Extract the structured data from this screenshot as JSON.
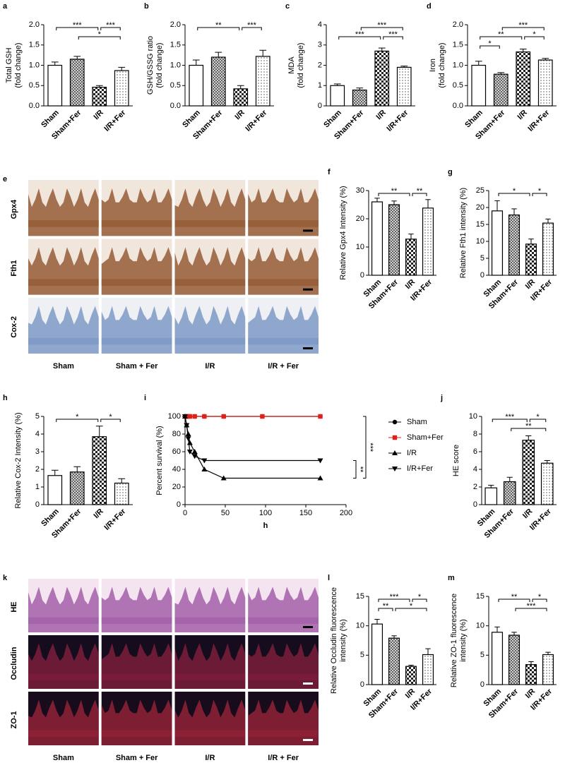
{
  "chart_data": [
    {
      "type": "bar",
      "panel": "a",
      "ylabel": [
        "Total GSH",
        "(fold change)"
      ],
      "categories": [
        "Sham",
        "Sham+Fer",
        "I/R",
        "I/R+Fer"
      ],
      "values": [
        1.0,
        1.15,
        0.46,
        0.87
      ],
      "errors": [
        0.08,
        0.07,
        0.04,
        0.08
      ],
      "ylim": [
        0,
        2
      ],
      "yticks": [
        {
          "value": 0,
          "label": "0.0"
        },
        0.5,
        {
          "value": 1,
          "label": "1.0"
        },
        1.5,
        {
          "value": 2,
          "label": "2.0"
        }
      ],
      "significance": [
        {
          "groups": [
            0,
            2
          ],
          "label": "***"
        },
        {
          "groups": [
            2,
            3
          ],
          "label": "***"
        },
        {
          "groups": [
            1,
            3
          ],
          "label": "*"
        }
      ]
    },
    {
      "type": "bar",
      "panel": "b",
      "ylabel": [
        "GSH/GSSG ratio",
        "(fold change)"
      ],
      "categories": [
        "Sham",
        "Sham+Fer",
        "I/R",
        "I/R+Fer"
      ],
      "values": [
        1.0,
        1.2,
        0.42,
        1.22
      ],
      "errors": [
        0.13,
        0.12,
        0.08,
        0.15
      ],
      "ylim": [
        0,
        2
      ],
      "yticks": [
        {
          "value": 0,
          "label": "0.0"
        },
        0.5,
        {
          "value": 1,
          "label": "1.0"
        },
        1.5,
        {
          "value": 2,
          "label": "2.0"
        }
      ],
      "significance": [
        {
          "groups": [
            0,
            2
          ],
          "label": "**"
        },
        {
          "groups": [
            2,
            3
          ],
          "label": "***"
        }
      ]
    },
    {
      "type": "bar",
      "panel": "c",
      "ylabel": [
        "MDA",
        "(fold change)"
      ],
      "categories": [
        "Sham",
        "Sham+Fer",
        "I/R",
        "I/R+Fer"
      ],
      "values": [
        1.0,
        0.78,
        2.7,
        1.9
      ],
      "errors": [
        0.08,
        0.1,
        0.15,
        0.06
      ],
      "ylim": [
        0,
        4
      ],
      "yticks": [
        0,
        1,
        2,
        3,
        4
      ],
      "significance": [
        {
          "groups": [
            1,
            3
          ],
          "label": "***"
        },
        {
          "groups": [
            0,
            2
          ],
          "label": "***"
        },
        {
          "groups": [
            2,
            3
          ],
          "label": "***"
        }
      ]
    },
    {
      "type": "bar",
      "panel": "d",
      "ylabel": [
        "Iron",
        "(fold change)"
      ],
      "categories": [
        "Sham",
        "Sham+Fer",
        "I/R",
        "I/R+Fer"
      ],
      "values": [
        1.0,
        0.78,
        1.33,
        1.13
      ],
      "errors": [
        0.1,
        0.04,
        0.07,
        0.04
      ],
      "ylim": [
        0,
        2
      ],
      "yticks": [
        {
          "value": 0,
          "label": "0.0"
        },
        0.5,
        {
          "value": 1,
          "label": "1.0"
        },
        1.5,
        {
          "value": 2,
          "label": "2.0"
        }
      ],
      "significance": [
        {
          "groups": [
            1,
            3
          ],
          "label": "***"
        },
        {
          "groups": [
            0,
            2
          ],
          "label": "**"
        },
        {
          "groups": [
            2,
            3
          ],
          "label": "*"
        },
        {
          "groups": [
            0,
            1
          ],
          "label": "*"
        }
      ]
    },
    {
      "type": "image",
      "panel": "e",
      "rows": [
        "Gpx4",
        "Fth1",
        "Cox-2"
      ],
      "columns": [
        "Sham",
        "Sham + Fer",
        "I/R",
        "I/R + Fer"
      ],
      "row_colors": [
        "#8a4a22",
        "#8a4a22",
        "#6f8fc0"
      ],
      "row_backgrounds": [
        "#f1e6dc",
        "#f1e6dc",
        "#eef0f4"
      ]
    },
    {
      "type": "bar",
      "panel": "f",
      "ylabel": [
        "Relative Gpx4 Intensity (%)"
      ],
      "categories": [
        "Sham",
        "Sham+Fer",
        "I/R",
        "I/R+Fer"
      ],
      "values": [
        26,
        25,
        12.8,
        23.8
      ],
      "errors": [
        1.3,
        1.3,
        1.8,
        3
      ],
      "ylim": [
        0,
        30
      ],
      "yticks": [
        0,
        10,
        20,
        30
      ],
      "significance": [
        {
          "groups": [
            0,
            2
          ],
          "label": "**"
        },
        {
          "groups": [
            2,
            3
          ],
          "label": "**"
        }
      ]
    },
    {
      "type": "bar",
      "panel": "g",
      "ylabel": [
        "Relative Fth1 intensity (%)"
      ],
      "categories": [
        "Sham",
        "Sham+Fer",
        "I/R",
        "I/R+Fer"
      ],
      "values": [
        19,
        17.8,
        9.2,
        15.4
      ],
      "errors": [
        3,
        1.8,
        1.5,
        1.2
      ],
      "ylim": [
        0,
        25
      ],
      "yticks": [
        0,
        5,
        10,
        15,
        20,
        25
      ],
      "significance": [
        {
          "groups": [
            0,
            2
          ],
          "label": "*"
        },
        {
          "groups": [
            2,
            3
          ],
          "label": "*"
        }
      ]
    },
    {
      "type": "bar",
      "panel": "h",
      "ylabel": [
        "Relative Cox-2 Intensity (%)"
      ],
      "categories": [
        "Sham",
        "Sham+Fer",
        "I/R",
        "I/R+Fer"
      ],
      "values": [
        1.65,
        1.85,
        3.85,
        1.22
      ],
      "errors": [
        0.3,
        0.3,
        0.6,
        0.25
      ],
      "ylim": [
        0,
        5
      ],
      "yticks": [
        0,
        1,
        2,
        3,
        4,
        5
      ],
      "significance": [
        {
          "groups": [
            0,
            2
          ],
          "label": "*"
        },
        {
          "groups": [
            2,
            3
          ],
          "label": "*"
        }
      ]
    },
    {
      "type": "line",
      "panel": "i",
      "ylabel": [
        "Percent survival (%)"
      ],
      "xlabel": "h",
      "xlim": [
        0,
        200
      ],
      "xticks": [
        0,
        50,
        100,
        150,
        200
      ],
      "ylim": [
        0,
        100
      ],
      "yticks": [
        0,
        20,
        40,
        60,
        80,
        100
      ],
      "series": [
        {
          "name": "Sham",
          "color": "#000000",
          "marker": "circle",
          "x": [
            0,
            2,
            4,
            6,
            12,
            24,
            48,
            96,
            168
          ],
          "values": [
            100,
            100,
            100,
            100,
            100,
            100,
            100,
            100,
            100
          ]
        },
        {
          "name": "Sham+Fer",
          "color": "#e0201b",
          "marker": "square",
          "x": [
            0,
            2,
            4,
            6,
            12,
            24,
            48,
            96,
            168
          ],
          "values": [
            100,
            100,
            100,
            100,
            100,
            100,
            100,
            100,
            100
          ]
        },
        {
          "name": "I/R",
          "color": "#000000",
          "marker": "triangle",
          "x": [
            0,
            2,
            4,
            6,
            12,
            24,
            48,
            168
          ],
          "values": [
            100,
            90,
            80,
            70,
            60,
            40,
            30,
            30
          ]
        },
        {
          "name": "I/R+Fer",
          "color": "#000000",
          "marker": "triangle-down",
          "x": [
            0,
            2,
            4,
            6,
            12,
            24,
            168
          ],
          "values": [
            100,
            90,
            75,
            60,
            55,
            50,
            50
          ]
        }
      ],
      "significance": [
        {
          "series": [
            0,
            2
          ],
          "label": "***"
        },
        {
          "series": [
            3,
            2
          ],
          "label": "**"
        }
      ]
    },
    {
      "type": "bar",
      "panel": "j",
      "ylabel": [
        "HE score"
      ],
      "categories": [
        "Sham",
        "Sham+Fer",
        "I/R",
        "I/R+Fer"
      ],
      "values": [
        1.9,
        2.6,
        7.3,
        4.7
      ],
      "errors": [
        0.3,
        0.5,
        0.5,
        0.3
      ],
      "ylim": [
        0,
        10
      ],
      "yticks": [
        0,
        2,
        4,
        6,
        8,
        10
      ],
      "significance": [
        {
          "groups": [
            0,
            2
          ],
          "label": "***"
        },
        {
          "groups": [
            2,
            3
          ],
          "label": "*"
        },
        {
          "groups": [
            1,
            3
          ],
          "label": "**"
        }
      ]
    },
    {
      "type": "image",
      "panel": "k",
      "rows": [
        "HE",
        "Occludin",
        "ZO-1"
      ],
      "columns": [
        "Sham",
        "Sham + Fer",
        "I/R",
        "I/R + Fer"
      ],
      "row_colors": [
        "#9a4fa0",
        "#8a2040",
        "#a0243a"
      ],
      "row_backgrounds": [
        "#f4e4f0",
        "#150c1e",
        "#180c1c"
      ]
    },
    {
      "type": "bar",
      "panel": "l",
      "ylabel": [
        "Relative Occludin fluorescence",
        "intensity (%)"
      ],
      "categories": [
        "Sham",
        "Sham+Fer",
        "I/R",
        "I/R+Fer"
      ],
      "values": [
        10.3,
        7.9,
        3.1,
        5.1
      ],
      "errors": [
        0.8,
        0.4,
        0.2,
        1.0
      ],
      "ylim": [
        0,
        15
      ],
      "yticks": [
        0,
        5,
        10,
        15
      ],
      "significance": [
        {
          "groups": [
            0,
            2
          ],
          "label": "***"
        },
        {
          "groups": [
            2,
            3
          ],
          "label": "*"
        },
        {
          "groups": [
            0,
            1
          ],
          "label": "**"
        },
        {
          "groups": [
            1,
            3
          ],
          "label": "*"
        }
      ]
    },
    {
      "type": "bar",
      "panel": "m",
      "ylabel": [
        "Relative ZO-1 fluorescence",
        "intensity (%)"
      ],
      "categories": [
        "Sham",
        "Sham+Fer",
        "I/R",
        "I/R+Fer"
      ],
      "values": [
        8.9,
        8.4,
        3.4,
        5.1
      ],
      "errors": [
        0.9,
        0.5,
        0.5,
        0.4
      ],
      "ylim": [
        0,
        15
      ],
      "yticks": [
        0,
        5,
        10,
        15
      ],
      "significance": [
        {
          "groups": [
            0,
            2
          ],
          "label": "**"
        },
        {
          "groups": [
            2,
            3
          ],
          "label": "*"
        },
        {
          "groups": [
            1,
            3
          ],
          "label": "***"
        }
      ]
    }
  ]
}
